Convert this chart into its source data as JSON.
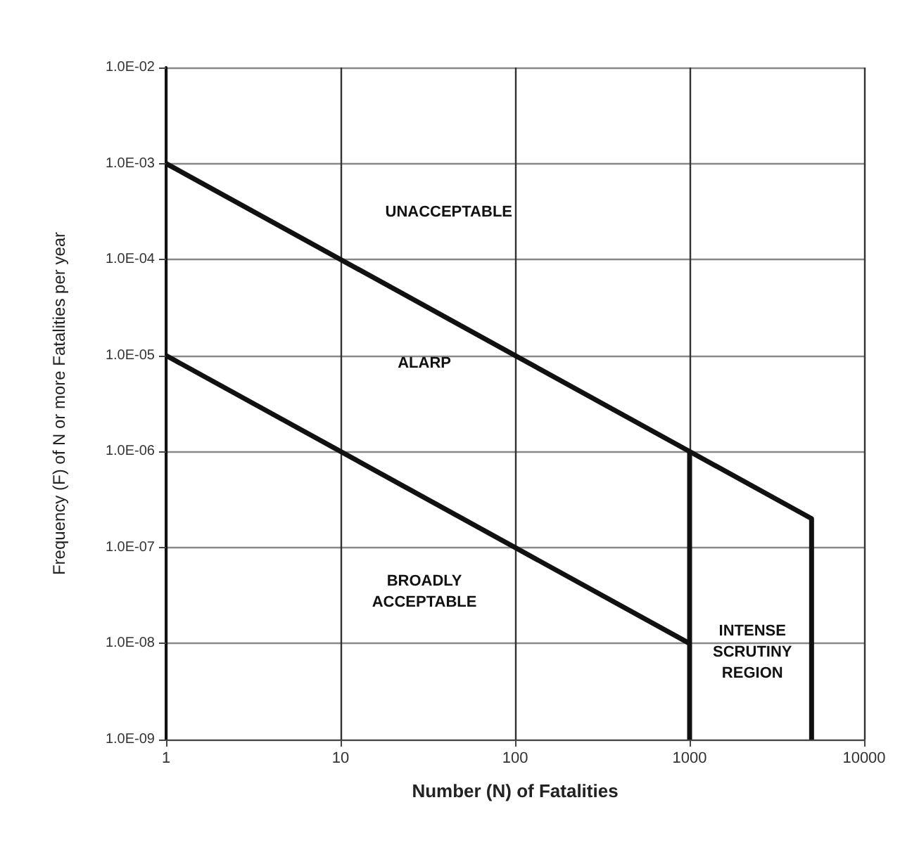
{
  "chart_data": {
    "type": "line",
    "xlabel": "Number (N) of Fatalities",
    "ylabel": "Frequency (F) of N or more Fatalities per year",
    "log": "xy",
    "grid": true,
    "marker": "none",
    "line_style": "solid",
    "xlim": [
      1,
      10000
    ],
    "xticks": [
      1,
      10,
      100,
      1000,
      10000
    ],
    "ylim": [
      1e-09,
      0.01
    ],
    "yticks": [
      {
        "value": 1e-09,
        "label": "1.0E-09"
      },
      {
        "value": 1e-08,
        "label": "1.0E-08"
      },
      {
        "value": 1e-07,
        "label": "1.0E-07"
      },
      {
        "value": 1e-06,
        "label": "1.0E-06"
      },
      {
        "value": 1e-05,
        "label": "1.0E-05"
      },
      {
        "value": 0.0001,
        "label": "1.0E-04"
      },
      {
        "value": 0.001,
        "label": "1.0E-03"
      },
      {
        "value": 0.01,
        "label": "1.0E-02"
      }
    ],
    "series": [
      {
        "color": "#111111",
        "x": [
          1,
          1000,
          5000,
          5000
        ],
        "values": [
          0.001,
          1e-06,
          2e-07,
          1e-09
        ]
      },
      {
        "color": "#111111",
        "x": [
          1000,
          1000
        ],
        "values": [
          1e-06,
          1e-09
        ]
      },
      {
        "color": "#111111",
        "x": [
          1,
          1000
        ],
        "values": [
          1e-05,
          1e-08
        ]
      }
    ],
    "annotations": [
      "UNACCEPTABLE",
      "ALARP",
      "BROADLY\nACCEPTABLE",
      "INTENSE\nSCRUTINY\nREGION"
    ]
  }
}
